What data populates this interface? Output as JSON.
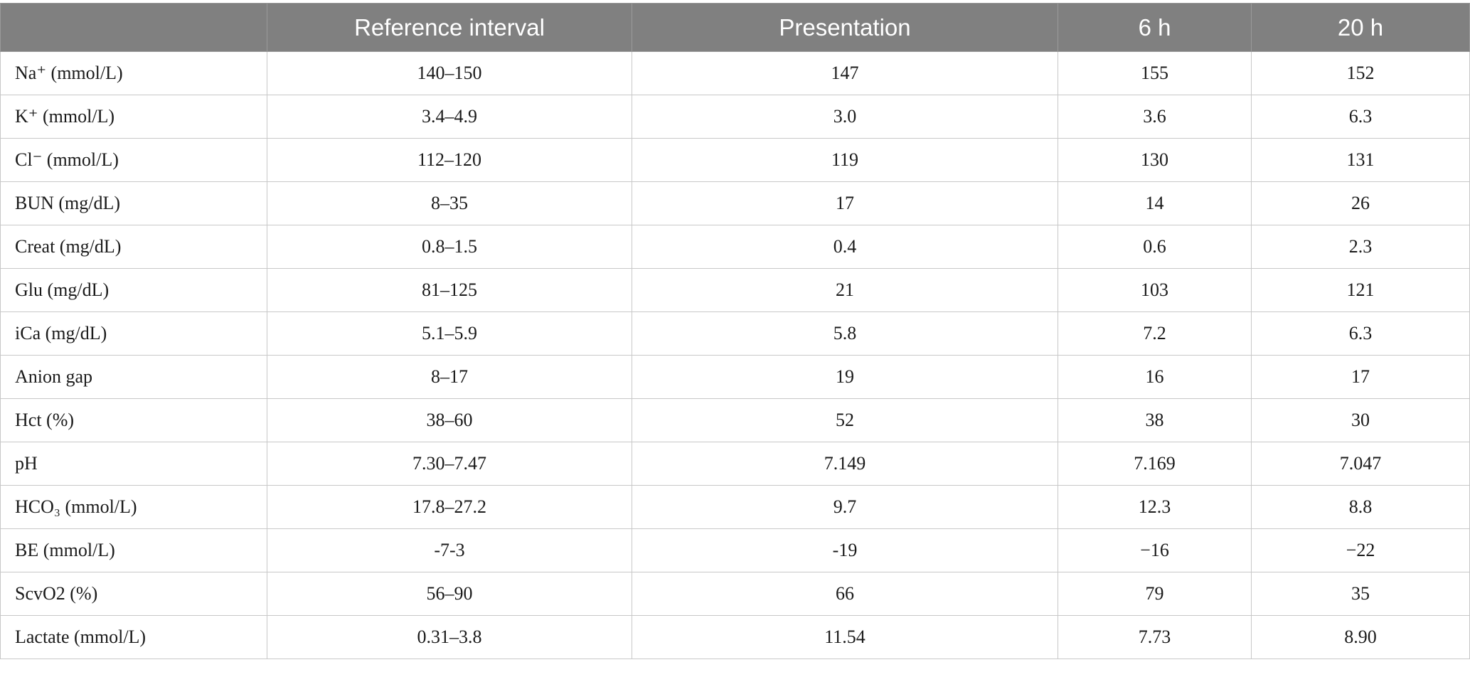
{
  "table": {
    "headers": [
      "",
      "Reference interval",
      "Presentation",
      "6 h",
      "20 h"
    ],
    "rows": [
      [
        "Na⁺ (mmol/L)",
        "140–150",
        "147",
        "155",
        "152"
      ],
      [
        "K⁺ (mmol/L)",
        "3.4–4.9",
        "3.0",
        "3.6",
        "6.3"
      ],
      [
        "Cl⁻ (mmol/L)",
        "112–120",
        "119",
        "130",
        "131"
      ],
      [
        "BUN (mg/dL)",
        "8–35",
        "17",
        "14",
        "26"
      ],
      [
        "Creat (mg/dL)",
        "0.8–1.5",
        "0.4",
        "0.6",
        "2.3"
      ],
      [
        "Glu (mg/dL)",
        "81–125",
        "21",
        "103",
        "121"
      ],
      [
        "iCa (mg/dL)",
        "5.1–5.9",
        "5.8",
        "7.2",
        "6.3"
      ],
      [
        "Anion gap",
        "8–17",
        "19",
        "16",
        "17"
      ],
      [
        "Hct (%)",
        "38–60",
        "52",
        "38",
        "30"
      ],
      [
        "pH",
        "7.30–7.47",
        "7.149",
        "7.169",
        "7.047"
      ],
      [
        "HCO₃ (mmol/L)",
        "17.8–27.2",
        "9.7",
        "12.3",
        "8.8"
      ],
      [
        "BE (mmol/L)",
        "-7-3",
        "-19",
        "−16",
        "−22"
      ],
      [
        "ScvO2 (%)",
        "56–90",
        "66",
        "79",
        "35"
      ],
      [
        "Lactate (mmol/L)",
        "0.31–3.8",
        "11.54",
        "7.73",
        "8.90"
      ]
    ]
  }
}
